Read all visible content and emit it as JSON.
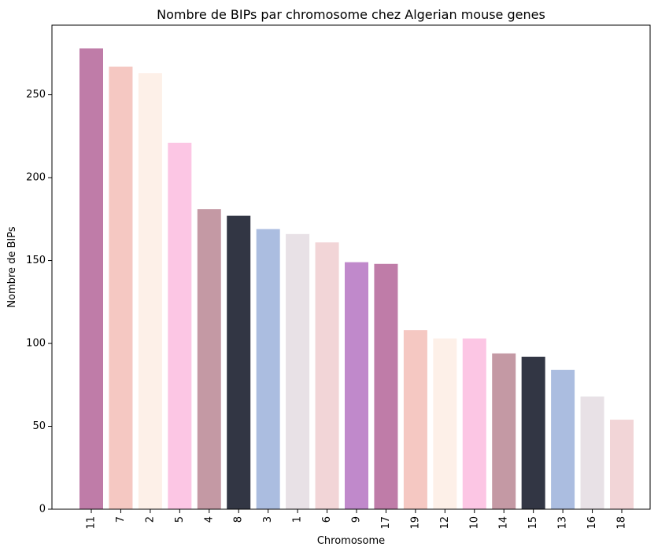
{
  "chart_data": {
    "type": "bar",
    "title": "Nombre de BIPs par chromosome chez Algerian mouse genes",
    "xlabel": "Chromosome",
    "ylabel": "Nombre de BIPs",
    "ylim": [
      0,
      292
    ],
    "yticks": [
      0,
      50,
      100,
      150,
      200,
      250
    ],
    "grid": false,
    "categories": [
      "11",
      "7",
      "2",
      "5",
      "4",
      "8",
      "3",
      "1",
      "6",
      "9",
      "17",
      "19",
      "12",
      "10",
      "14",
      "15",
      "13",
      "16",
      "18"
    ],
    "values": [
      278,
      267,
      263,
      221,
      181,
      177,
      169,
      166,
      161,
      149,
      148,
      108,
      103,
      103,
      94,
      92,
      84,
      68,
      54
    ],
    "colors": [
      "#bf7ca8",
      "#f5c8c2",
      "#fdf0e8",
      "#fcc6e4",
      "#c499a4",
      "#323644",
      "#abbde0",
      "#e8e1e6",
      "#f2d5d7",
      "#c089cb",
      "#bf7ca8",
      "#f5c8c2",
      "#fdf0e8",
      "#fcc6e4",
      "#c499a4",
      "#323644",
      "#abbde0",
      "#e8e1e6",
      "#f2d5d7"
    ]
  }
}
